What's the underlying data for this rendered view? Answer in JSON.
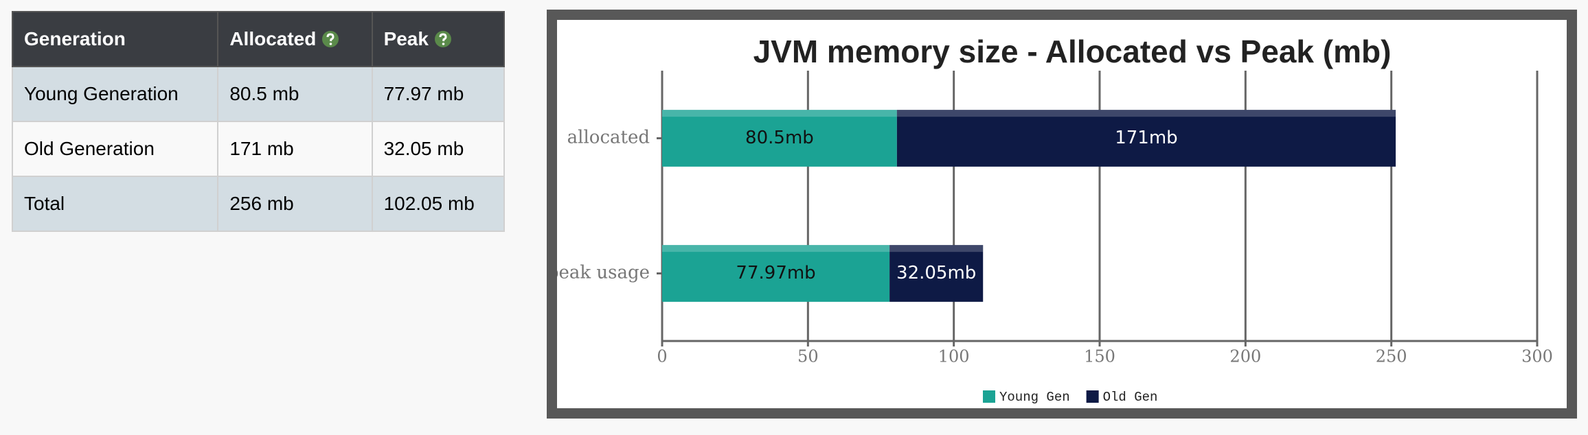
{
  "table": {
    "header": [
      "Generation",
      "Allocated",
      "Peak"
    ],
    "rows": [
      [
        "Young Generation",
        "80.5 mb",
        "77.97 mb"
      ],
      [
        "Old Generation",
        "171 mb",
        "32.05 mb"
      ],
      [
        "Total",
        "256 mb",
        "102.05 mb"
      ]
    ]
  },
  "chart_data": {
    "type": "stacked-bar-horizontal",
    "title": "JVM memory size - Allocated vs Peak (mb)",
    "categories": [
      "allocated",
      "peak usage"
    ],
    "series": [
      {
        "name": "Young Gen",
        "color": "#1ba394",
        "values": [
          80.5,
          77.97
        ],
        "value_labels": [
          "80.5mb",
          "77.97mb"
        ]
      },
      {
        "name": "Old Gen",
        "color": "#0e1a45",
        "values": [
          171,
          32.05
        ],
        "value_labels": [
          "171mb",
          "32.05mb"
        ]
      }
    ],
    "xlim": [
      0,
      300
    ],
    "xticks": [
      0,
      50,
      100,
      150,
      200,
      250,
      300
    ],
    "grid": true,
    "legend": "bottom"
  }
}
